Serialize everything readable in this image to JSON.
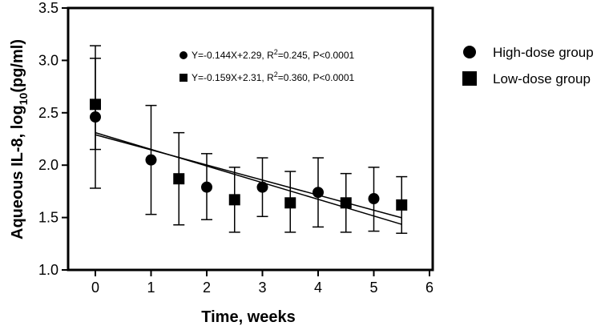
{
  "chart_data": {
    "type": "scatter",
    "title": "",
    "xlabel": "Time, weeks",
    "ylabel_main": "Aqueous IL-8, log",
    "ylabel_sub": "10",
    "ylabel_unit": "(pg/ml)",
    "xlim": [
      -0.5,
      6
    ],
    "ylim": [
      1.0,
      3.5
    ],
    "xticks": [
      "0",
      "1",
      "2",
      "3",
      "4",
      "5",
      "6"
    ],
    "yticks": [
      "1.0",
      "1.5",
      "2.0",
      "2.5",
      "3.0",
      "3.5"
    ],
    "series": [
      {
        "name": "High-dose group",
        "marker": "circle",
        "x": [
          0,
          1,
          2,
          3,
          4,
          5
        ],
        "y": [
          2.46,
          2.05,
          1.79,
          1.79,
          1.74,
          1.68
        ],
        "err_low": [
          1.78,
          1.53,
          1.48,
          1.51,
          1.41,
          1.37
        ],
        "err_high": [
          3.14,
          2.57,
          2.11,
          2.07,
          2.07,
          1.98
        ],
        "fit": {
          "slope": -0.144,
          "intercept": 2.29,
          "x_start": 0,
          "x_end": 5.5
        },
        "equation": {
          "lhs": "Y=-0.144X+2.29, R",
          "sup": "2",
          "rhs": "=0.245, P<0.0001"
        }
      },
      {
        "name": "Low-dose group",
        "marker": "square",
        "x": [
          0,
          1.5,
          2.5,
          3.5,
          4.5,
          5.5
        ],
        "y": [
          2.58,
          1.87,
          1.67,
          1.64,
          1.64,
          1.62
        ],
        "err_low": [
          2.15,
          1.43,
          1.36,
          1.36,
          1.36,
          1.35
        ],
        "err_high": [
          3.02,
          2.31,
          1.98,
          1.94,
          1.92,
          1.89
        ],
        "fit": {
          "slope": -0.159,
          "intercept": 2.31,
          "x_start": 0,
          "x_end": 5.5
        },
        "equation": {
          "lhs": "Y=-0.159X+2.31, R",
          "sup": "2",
          "rhs": "=0.360, P<0.0001"
        }
      }
    ],
    "legend": [
      {
        "label": "High-dose group",
        "marker": "circle"
      },
      {
        "label": "Low-dose group",
        "marker": "square"
      }
    ],
    "legend_position": "right"
  }
}
